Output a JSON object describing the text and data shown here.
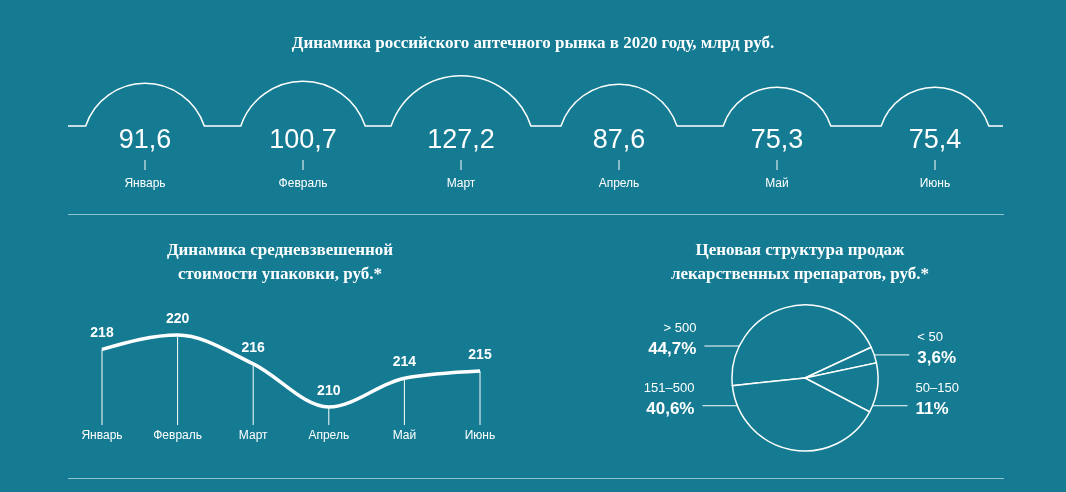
{
  "chart_data": [
    {
      "type": "other",
      "title": "Динамика российского аптечного рынка в 2020 году, млрд руб.",
      "categories": [
        "Январь",
        "Февраль",
        "Март",
        "Апрель",
        "Май",
        "Июнь"
      ],
      "values": [
        91.6,
        100.7,
        127.2,
        87.6,
        75.3,
        75.4
      ],
      "value_labels": [
        "91,6",
        "100,7",
        "127,2",
        "87,6",
        "75,3",
        "75,4"
      ],
      "color": "#ffffff"
    },
    {
      "type": "line",
      "title": "Динамика средневзвешенной\nстоимости упаковки, руб.*",
      "categories": [
        "Январь",
        "Февраль",
        "Март",
        "Апрель",
        "Май",
        "Июнь"
      ],
      "values": [
        218,
        220,
        216,
        210,
        214,
        215
      ],
      "color": "#ffffff",
      "data_labels": true,
      "marker": "none",
      "grid": "x"
    },
    {
      "type": "pie",
      "title": "Ценовая структура продаж\nлекарственных препаратов, руб.*",
      "categories": [
        "> 500",
        "< 50",
        "50–150",
        "151–500"
      ],
      "values": [
        44.7,
        3.6,
        11,
        40.6
      ],
      "value_labels": [
        "44,7%",
        "3,6%",
        "11%",
        "40,6%"
      ],
      "colors": [
        "#147b93",
        "#147b93",
        "#147b93",
        "#147b93"
      ]
    }
  ]
}
